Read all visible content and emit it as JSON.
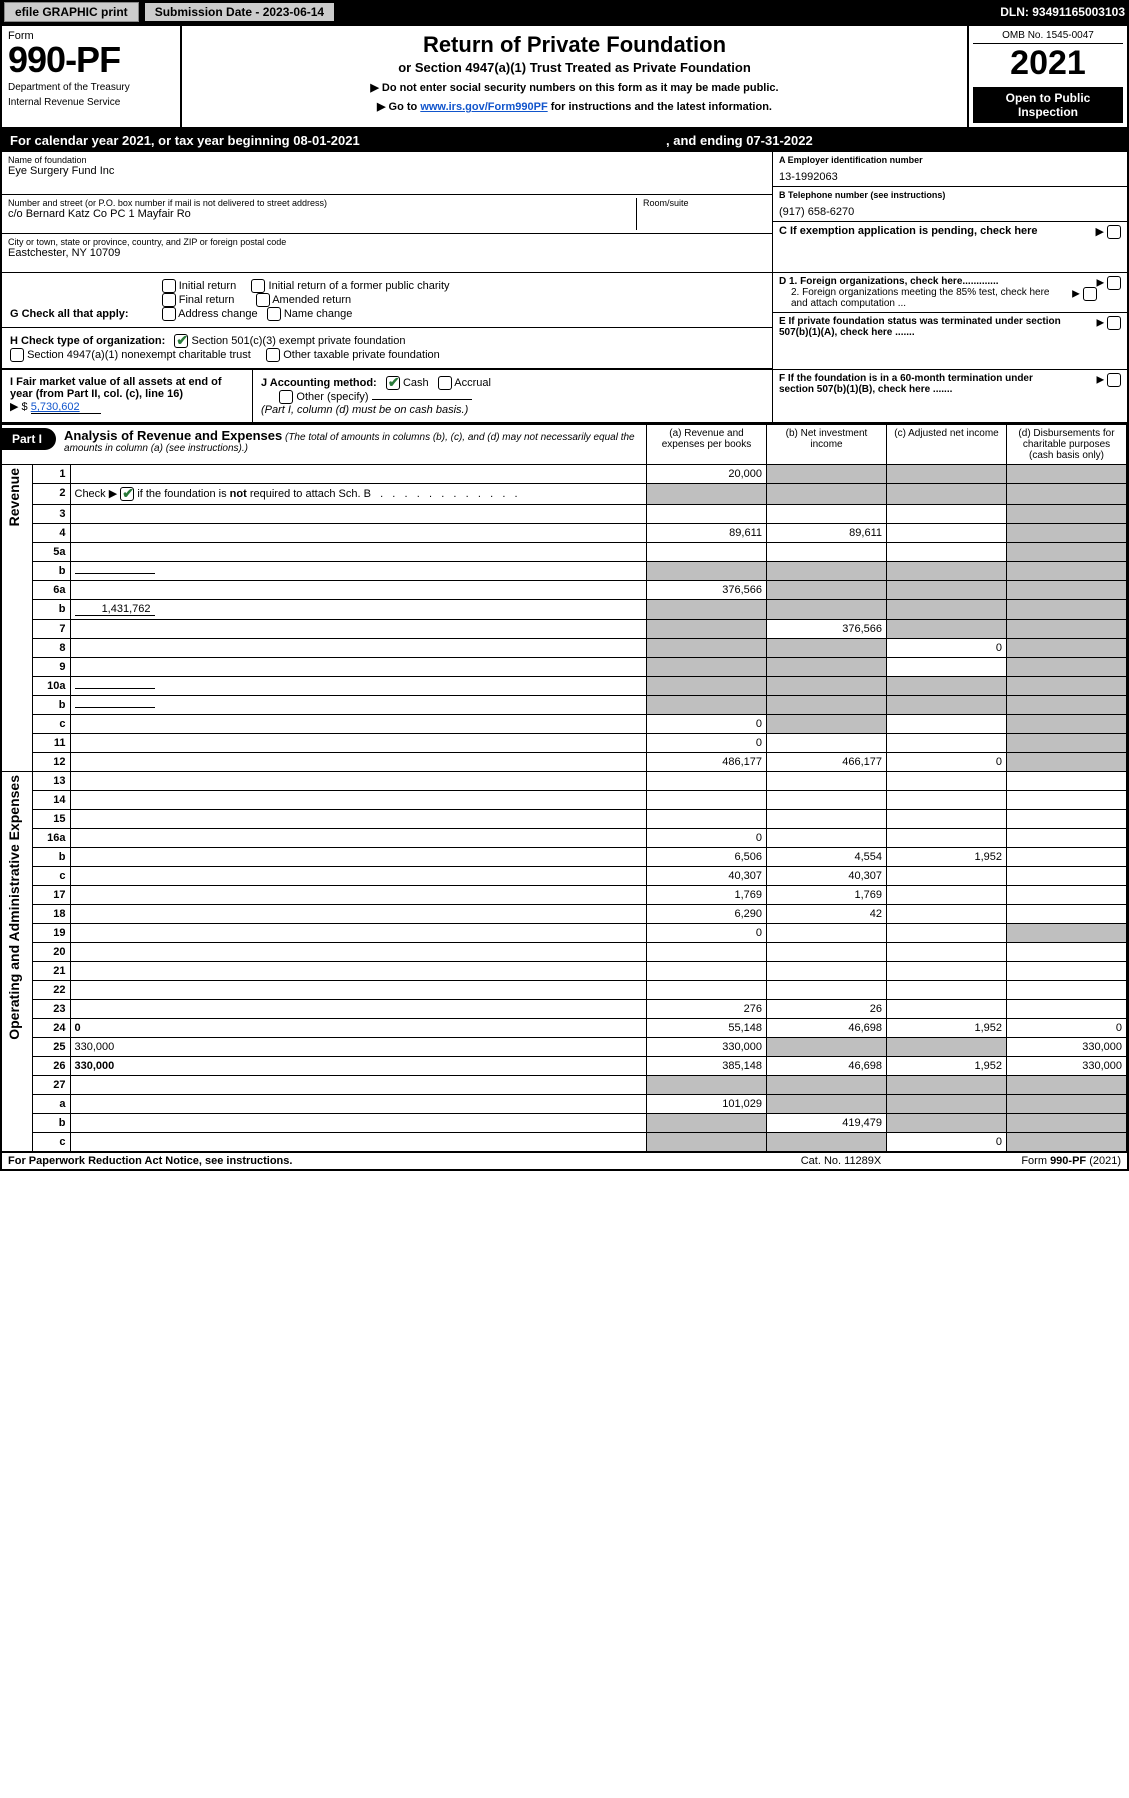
{
  "top_bar": {
    "efile_label": "efile GRAPHIC print",
    "submission_label": "Submission Date - 2023-06-14",
    "dln": "DLN: 93491165003103"
  },
  "header": {
    "form_word": "Form",
    "form_num": "990-PF",
    "dept": "Department of the Treasury",
    "irs": "Internal Revenue Service",
    "title": "Return of Private Foundation",
    "subtitle": "or Section 4947(a)(1) Trust Treated as Private Foundation",
    "note1": "▶ Do not enter social security numbers on this form as it may be made public.",
    "note2_pre": "▶ Go to ",
    "note2_link": "www.irs.gov/Form990PF",
    "note2_post": " for instructions and the latest information.",
    "omb": "OMB No. 1545-0047",
    "year": "2021",
    "open_public": "Open to Public Inspection"
  },
  "cal_year": {
    "text1": "For calendar year 2021, or tax year beginning 08-01-2021",
    "text2": ", and ending 07-31-2022"
  },
  "identity": {
    "name_lbl": "Name of foundation",
    "name": "Eye Surgery Fund Inc",
    "addr_lbl": "Number and street (or P.O. box number if mail is not delivered to street address)",
    "addr": "c/o Bernard Katz Co PC 1 Mayfair Ro",
    "room_lbl": "Room/suite",
    "city_lbl": "City or town, state or province, country, and ZIP or foreign postal code",
    "city": "Eastchester, NY  10709",
    "ein_lbl": "A Employer identification number",
    "ein": "13-1992063",
    "phone_lbl": "B Telephone number (see instructions)",
    "phone": "(917) 658-6270",
    "c_exempt": "C If exemption application is pending, check here",
    "d1": "D 1. Foreign organizations, check here.............",
    "d2": "2. Foreign organizations meeting the 85% test, check here and attach computation ...",
    "e": "E  If private foundation status was terminated under section 507(b)(1)(A), check here .......",
    "f": "F  If the foundation is in a 60-month termination under section 507(b)(1)(B), check here ......."
  },
  "g": {
    "label": "G Check all that apply:",
    "opts": [
      "Initial return",
      "Initial return of a former public charity",
      "Final return",
      "Amended return",
      "Address change",
      "Name change"
    ]
  },
  "h": {
    "label": "H Check type of organization:",
    "opt1": "Section 501(c)(3) exempt private foundation",
    "opt2": "Section 4947(a)(1) nonexempt charitable trust",
    "opt3": "Other taxable private foundation"
  },
  "i": {
    "label": "I Fair market value of all assets at end of year (from Part II, col. (c), line 16)",
    "arrow": "▶ $",
    "value": "5,730,602"
  },
  "j": {
    "label": "J Accounting method:",
    "cash": "Cash",
    "accrual": "Accrual",
    "other": "Other (specify)",
    "note": "(Part I, column (d) must be on cash basis.)"
  },
  "part1": {
    "tag": "Part I",
    "title": "Analysis of Revenue and Expenses",
    "note": " (The total of amounts in columns (b), (c), and (d) may not necessarily equal the amounts in column (a) (see instructions).)",
    "col_a": "(a)   Revenue and expenses per books",
    "col_b": "(b)   Net investment income",
    "col_c": "(c)   Adjusted net income",
    "col_d": "(d)   Disbursements for charitable purposes (cash basis only)"
  },
  "rows": [
    {
      "n": "1",
      "d": "",
      "a": "20,000",
      "b": "",
      "c": "",
      "gb": true,
      "gc": true,
      "gd": true
    },
    {
      "n": "2",
      "d": "",
      "a": "",
      "b": "",
      "c": "",
      "ga": true,
      "gb": true,
      "gc": true,
      "gd": true,
      "bold_not": true
    },
    {
      "n": "3",
      "d": "",
      "a": "",
      "b": "",
      "c": "",
      "gd": true
    },
    {
      "n": "4",
      "d": "",
      "a": "89,611",
      "b": "89,611",
      "c": "",
      "gd": true
    },
    {
      "n": "5a",
      "d": "",
      "a": "",
      "b": "",
      "c": "",
      "gd": true
    },
    {
      "n": "b",
      "d": "",
      "a": "",
      "b": "",
      "c": "",
      "ga": true,
      "gb": true,
      "gc": true,
      "gd": true,
      "inline": true
    },
    {
      "n": "6a",
      "d": "",
      "a": "376,566",
      "b": "",
      "c": "",
      "gb": true,
      "gc": true,
      "gd": true
    },
    {
      "n": "b",
      "d": "",
      "a": "",
      "b": "",
      "c": "",
      "ga": true,
      "gb": true,
      "gc": true,
      "gd": true,
      "inline": true,
      "inline_val": "1,431,762"
    },
    {
      "n": "7",
      "d": "",
      "a": "",
      "b": "376,566",
      "c": "",
      "ga": true,
      "gc": true,
      "gd": true
    },
    {
      "n": "8",
      "d": "",
      "a": "",
      "b": "",
      "c": "0",
      "ga": true,
      "gb": true,
      "gd": true
    },
    {
      "n": "9",
      "d": "",
      "a": "",
      "b": "",
      "c": "",
      "ga": true,
      "gb": true,
      "gd": true
    },
    {
      "n": "10a",
      "d": "",
      "a": "",
      "b": "",
      "c": "",
      "ga": true,
      "gb": true,
      "gc": true,
      "gd": true,
      "inline": true
    },
    {
      "n": "b",
      "d": "",
      "a": "",
      "b": "",
      "c": "",
      "ga": true,
      "gb": true,
      "gc": true,
      "gd": true,
      "inline": true
    },
    {
      "n": "c",
      "d": "",
      "a": "0",
      "b": "",
      "c": "",
      "gb": true,
      "gd": true
    },
    {
      "n": "11",
      "d": "",
      "a": "0",
      "b": "",
      "c": "",
      "gd": true
    },
    {
      "n": "12",
      "d": "",
      "a": "486,177",
      "b": "466,177",
      "c": "0",
      "bold": true,
      "gd": true
    },
    {
      "n": "13",
      "d": "",
      "a": "",
      "b": "",
      "c": ""
    },
    {
      "n": "14",
      "d": "",
      "a": "",
      "b": "",
      "c": ""
    },
    {
      "n": "15",
      "d": "",
      "a": "",
      "b": "",
      "c": ""
    },
    {
      "n": "16a",
      "d": "",
      "a": "0",
      "b": "",
      "c": ""
    },
    {
      "n": "b",
      "d": "",
      "a": "6,506",
      "b": "4,554",
      "c": "1,952"
    },
    {
      "n": "c",
      "d": "",
      "a": "40,307",
      "b": "40,307",
      "c": ""
    },
    {
      "n": "17",
      "d": "",
      "a": "1,769",
      "b": "1,769",
      "c": ""
    },
    {
      "n": "18",
      "d": "",
      "a": "6,290",
      "b": "42",
      "c": ""
    },
    {
      "n": "19",
      "d": "",
      "a": "0",
      "b": "",
      "c": "",
      "gd": true
    },
    {
      "n": "20",
      "d": "",
      "a": "",
      "b": "",
      "c": ""
    },
    {
      "n": "21",
      "d": "",
      "a": "",
      "b": "",
      "c": ""
    },
    {
      "n": "22",
      "d": "",
      "a": "",
      "b": "",
      "c": ""
    },
    {
      "n": "23",
      "d": "",
      "a": "276",
      "b": "26",
      "c": ""
    },
    {
      "n": "24",
      "d": "0",
      "a": "55,148",
      "b": "46,698",
      "c": "1,952",
      "bold": true
    },
    {
      "n": "25",
      "d": "330,000",
      "a": "330,000",
      "b": "",
      "c": "",
      "gb": true,
      "gc": true
    },
    {
      "n": "26",
      "d": "330,000",
      "a": "385,148",
      "b": "46,698",
      "c": "1,952",
      "bold": true
    },
    {
      "n": "27",
      "d": "",
      "a": "",
      "b": "",
      "c": "",
      "ga": true,
      "gb": true,
      "gc": true,
      "gd": true
    },
    {
      "n": "a",
      "d": "",
      "a": "101,029",
      "b": "",
      "c": "",
      "bold": true,
      "gb": true,
      "gc": true,
      "gd": true
    },
    {
      "n": "b",
      "d": "",
      "a": "",
      "b": "419,479",
      "c": "",
      "bold": true,
      "ga": true,
      "gc": true,
      "gd": true
    },
    {
      "n": "c",
      "d": "",
      "a": "",
      "b": "",
      "c": "0",
      "bold": true,
      "ga": true,
      "gb": true,
      "gd": true
    }
  ],
  "side": {
    "revenue": "Revenue",
    "expenses": "Operating and Administrative Expenses"
  },
  "footer": {
    "left": "For Paperwork Reduction Act Notice, see instructions.",
    "mid": "Cat. No. 11289X",
    "right": "Form 990-PF (2021)"
  },
  "colors": {
    "black": "#000000",
    "white": "#ffffff",
    "grey": "#bfbfbf",
    "link": "#1155cc",
    "check": "#2a7a3a",
    "topgrey": "#cccccc"
  }
}
